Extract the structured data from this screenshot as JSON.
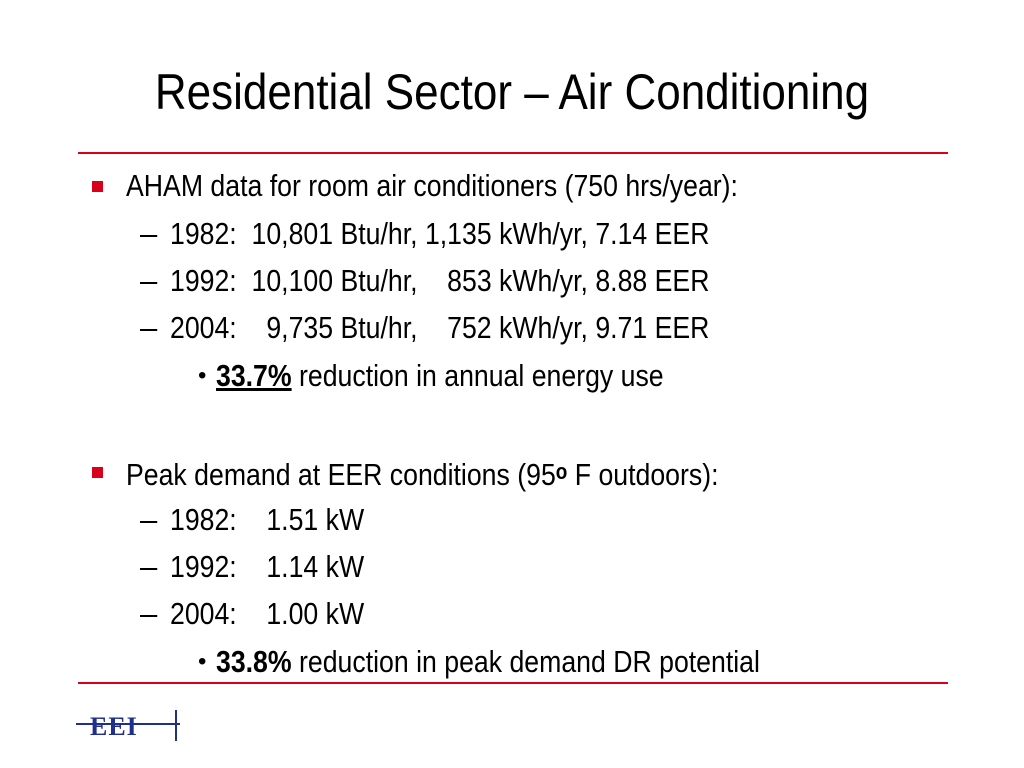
{
  "slide": {
    "title": "Residential Sector – Air Conditioning",
    "accent_color": "#d9001b",
    "section1": {
      "heading": "AHAM data for room air conditioners (750 hrs/year):",
      "items": [
        "1982:  10,801 Btu/hr, 1,135 kWh/yr, 7.14 EER",
        "1992:  10,100 Btu/hr,    853 kWh/yr, 8.88 EER",
        "2004:    9,735 Btu/hr,    752 kWh/yr, 9.71 EER"
      ],
      "sub_value": "33.7%",
      "sub_text": " reduction in annual energy use"
    },
    "section2": {
      "heading_pre": "Peak demand at EER conditions (95",
      "heading_sup": "o",
      "heading_post": " F outdoors):",
      "items": [
        "1982:    1.51 kW",
        "1992:    1.14 kW",
        "2004:    1.00 kW"
      ],
      "sub_value": "33.8%",
      "sub_text": " reduction in peak demand DR potential"
    },
    "logo_text": "EEI"
  }
}
